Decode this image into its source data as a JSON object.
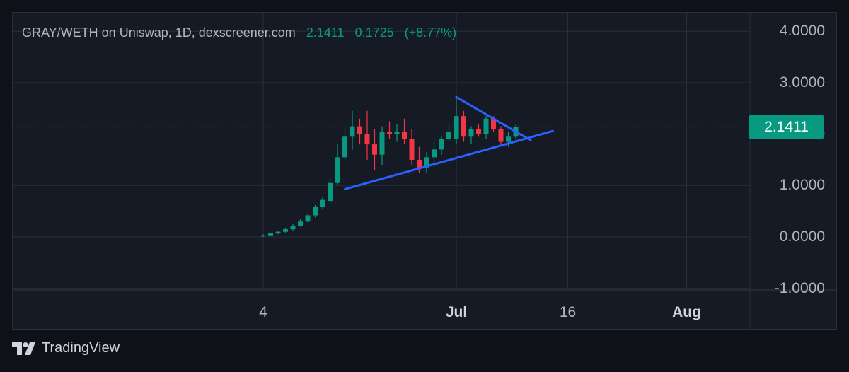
{
  "header": {
    "title": "GRAY/WETH on Uniswap, 1D, dexscreener.com",
    "last_price": "2.1411",
    "change": "0.1725",
    "change_pct": "(+8.77%)"
  },
  "price_badge": "2.1411",
  "footer": {
    "brand": "TradingView",
    "logo_icon": "tradingview-logo-icon"
  },
  "colors": {
    "background": "#161a25",
    "up": "#089981",
    "down": "#f23645",
    "trendline": "#2962ff",
    "grid": "#2a2e39",
    "text": "#b2b5be"
  },
  "chart_data": {
    "type": "candlestick",
    "title": "GRAY/WETH on Uniswap, 1D, dexscreener.com",
    "y_ticks": [
      "4.0000",
      "3.0000",
      "2.0000",
      "1.0000",
      "0.0000",
      "-1.0000"
    ],
    "y_tick_values": [
      4,
      3,
      2,
      1,
      0,
      -1
    ],
    "x_ticks": [
      {
        "label": "4",
        "day": 4,
        "bold": false
      },
      {
        "label": "Jul",
        "day": 30,
        "bold": true
      },
      {
        "label": "16",
        "day": 45,
        "bold": false
      },
      {
        "label": "Aug",
        "day": 61,
        "bold": true
      }
    ],
    "ylim": [
      -1.05,
      4.3
    ],
    "xlim": [
      -31,
      71
    ],
    "x_unit": "days since June 1",
    "last_price": 2.1411,
    "candles": [
      {
        "day": 4,
        "o": 0.02,
        "h": 0.05,
        "l": 0.0,
        "c": 0.03
      },
      {
        "day": 5,
        "o": 0.03,
        "h": 0.08,
        "l": 0.02,
        "c": 0.07
      },
      {
        "day": 6,
        "o": 0.07,
        "h": 0.12,
        "l": 0.05,
        "c": 0.1
      },
      {
        "day": 7,
        "o": 0.1,
        "h": 0.18,
        "l": 0.08,
        "c": 0.15
      },
      {
        "day": 8,
        "o": 0.15,
        "h": 0.25,
        "l": 0.12,
        "c": 0.22
      },
      {
        "day": 9,
        "o": 0.22,
        "h": 0.35,
        "l": 0.2,
        "c": 0.3
      },
      {
        "day": 10,
        "o": 0.3,
        "h": 0.45,
        "l": 0.28,
        "c": 0.42
      },
      {
        "day": 11,
        "o": 0.42,
        "h": 0.62,
        "l": 0.38,
        "c": 0.58
      },
      {
        "day": 12,
        "o": 0.58,
        "h": 0.78,
        "l": 0.55,
        "c": 0.72
      },
      {
        "day": 13,
        "o": 0.7,
        "h": 1.15,
        "l": 0.68,
        "c": 1.05
      },
      {
        "day": 14,
        "o": 1.05,
        "h": 1.8,
        "l": 1.0,
        "c": 1.55
      },
      {
        "day": 15,
        "o": 1.55,
        "h": 2.1,
        "l": 1.5,
        "c": 1.95
      },
      {
        "day": 16,
        "o": 1.95,
        "h": 2.45,
        "l": 1.7,
        "c": 2.15
      },
      {
        "day": 17,
        "o": 2.15,
        "h": 2.3,
        "l": 1.8,
        "c": 2.0
      },
      {
        "day": 18,
        "o": 2.0,
        "h": 2.45,
        "l": 1.5,
        "c": 1.8
      },
      {
        "day": 19,
        "o": 1.8,
        "h": 2.1,
        "l": 1.3,
        "c": 1.6
      },
      {
        "day": 20,
        "o": 1.6,
        "h": 2.15,
        "l": 1.4,
        "c": 2.05
      },
      {
        "day": 21,
        "o": 2.05,
        "h": 2.25,
        "l": 1.9,
        "c": 2.0
      },
      {
        "day": 22,
        "o": 2.0,
        "h": 2.2,
        "l": 1.85,
        "c": 2.05
      },
      {
        "day": 23,
        "o": 2.05,
        "h": 2.3,
        "l": 1.8,
        "c": 1.9
      },
      {
        "day": 24,
        "o": 1.9,
        "h": 2.1,
        "l": 1.4,
        "c": 1.5
      },
      {
        "day": 25,
        "o": 1.5,
        "h": 1.75,
        "l": 1.25,
        "c": 1.35
      },
      {
        "day": 26,
        "o": 1.35,
        "h": 1.65,
        "l": 1.25,
        "c": 1.55
      },
      {
        "day": 27,
        "o": 1.55,
        "h": 1.85,
        "l": 1.35,
        "c": 1.7
      },
      {
        "day": 28,
        "o": 1.7,
        "h": 1.95,
        "l": 1.6,
        "c": 1.9
      },
      {
        "day": 29,
        "o": 1.9,
        "h": 2.2,
        "l": 1.85,
        "c": 2.05
      },
      {
        "day": 30,
        "o": 1.9,
        "h": 2.7,
        "l": 1.8,
        "c": 2.35
      },
      {
        "day": 31,
        "o": 2.35,
        "h": 2.45,
        "l": 1.85,
        "c": 1.95
      },
      {
        "day": 32,
        "o": 1.95,
        "h": 2.15,
        "l": 1.8,
        "c": 2.1
      },
      {
        "day": 33,
        "o": 2.1,
        "h": 2.2,
        "l": 1.95,
        "c": 2.0
      },
      {
        "day": 34,
        "o": 2.0,
        "h": 2.35,
        "l": 1.9,
        "c": 2.3
      },
      {
        "day": 35,
        "o": 2.3,
        "h": 2.35,
        "l": 2.05,
        "c": 2.1
      },
      {
        "day": 36,
        "o": 2.1,
        "h": 2.15,
        "l": 1.8,
        "c": 1.85
      },
      {
        "day": 37,
        "o": 1.85,
        "h": 2.05,
        "l": 1.75,
        "c": 1.95
      },
      {
        "day": 38,
        "o": 1.95,
        "h": 2.18,
        "l": 1.9,
        "c": 2.14
      }
    ],
    "trendlines": [
      {
        "name": "upper",
        "from": {
          "day": 30,
          "price": 2.72
        },
        "to": {
          "day": 40,
          "price": 1.88
        }
      },
      {
        "name": "lower",
        "from": {
          "day": 15,
          "price": 0.93
        },
        "to": {
          "day": 43,
          "price": 2.06
        }
      }
    ]
  }
}
